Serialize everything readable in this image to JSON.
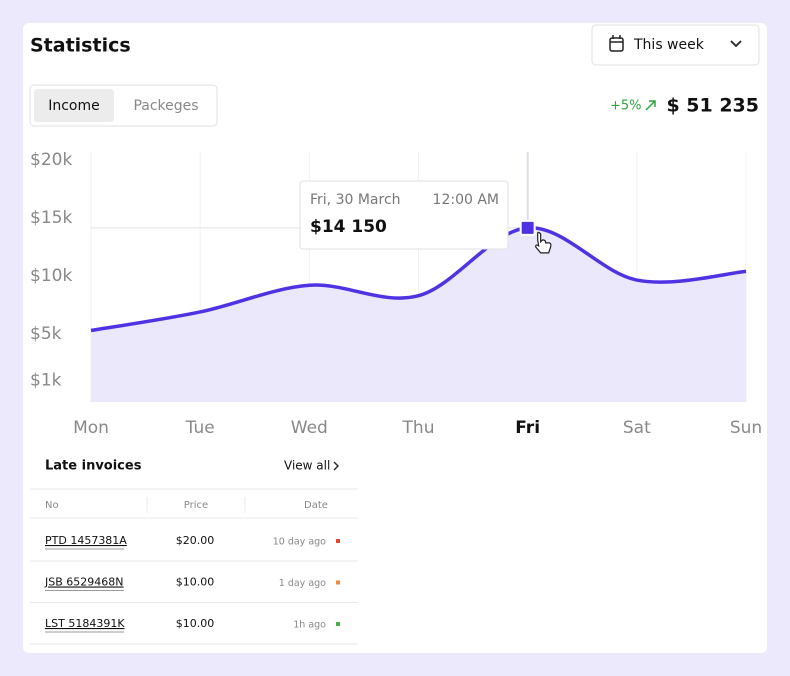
{
  "header": {
    "title": "Statistics",
    "period": "This week"
  },
  "tabs": [
    "Income",
    "Packeges"
  ],
  "summary": {
    "change": "+5%",
    "total": "$ 51 235"
  },
  "chart_data": {
    "type": "line",
    "categories": [
      "Mon",
      "Tue",
      "Wed",
      "Thu",
      "Fri",
      "Sat",
      "Sun"
    ],
    "values": [
      5300,
      6900,
      9200,
      8300,
      14150,
      9650,
      10400
    ],
    "value_labels": [
      null,
      null,
      null,
      null,
      "$14 150",
      null,
      null
    ],
    "color": "#4f32e3",
    "fill": "#ebe8fb",
    "ylim": [
      0,
      20000
    ],
    "yticks": [
      {
        "value": 1000,
        "label": "$1k"
      },
      {
        "value": 5000,
        "label": "$5k"
      },
      {
        "value": 10000,
        "label": "$10k"
      },
      {
        "value": 15000,
        "label": "$15k"
      },
      {
        "value": 20000,
        "label": "$20k"
      }
    ],
    "grid": true,
    "active_index": 4,
    "tooltip": {
      "date": "Fri, 30 March",
      "time": "12:00 AM"
    }
  },
  "table": {
    "title": "Late invoices",
    "link": "View all",
    "columns": [
      "No",
      "Price",
      "Date"
    ],
    "rows": [
      {
        "no": "PTD 1457381A",
        "price": "$20.00",
        "date": "10 day ago",
        "color": "#e5472d"
      },
      {
        "no": "JSB 6529468N",
        "price": "$10.00",
        "date": "1 day ago",
        "color": "#f08a3c"
      },
      {
        "no": "LST 5184391K",
        "price": "$10.00",
        "date": "1h ago",
        "color": "#3fb44a"
      }
    ]
  }
}
